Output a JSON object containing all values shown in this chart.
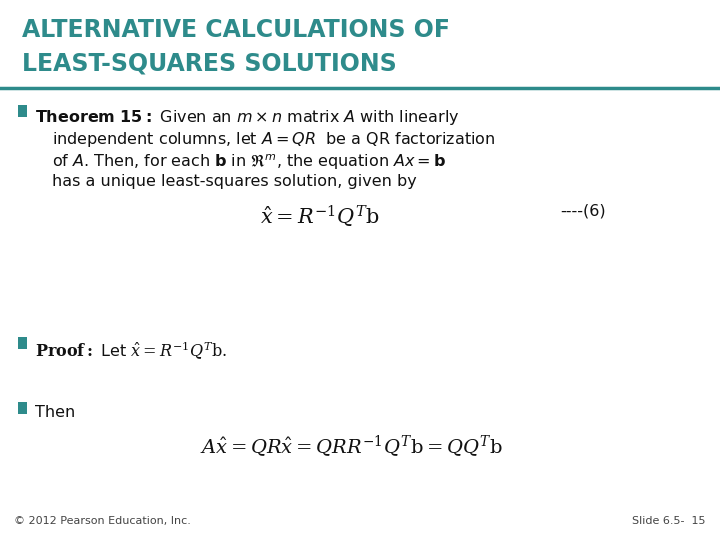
{
  "title_line1": "ALTERNATIVE CALCULATIONS OF",
  "title_line2": "LEAST-SQUARES SOLUTIONS",
  "title_color": "#2E8B8B",
  "header_line_color": "#2E8B8B",
  "bg_color": "#FFFFFF",
  "bullet_color": "#2E8B8B",
  "text_color": "#111111",
  "footer_left": "© 2012 Pearson Education, Inc.",
  "footer_right": "Slide 6.5-  15",
  "title_fontsize": 17,
  "body_fontsize": 11.5,
  "eq_fontsize": 13,
  "footer_fontsize": 8
}
